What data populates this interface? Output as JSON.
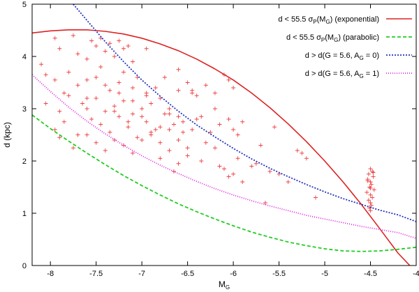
{
  "chart_data": {
    "type": "scatter",
    "xlabel": "M",
    "xlabel_sub": "G",
    "ylabel": "d (kpc)",
    "xlim": [
      -8.2,
      -4.0
    ],
    "ylim": [
      0,
      5
    ],
    "xticks": [
      -8,
      -7.5,
      -7,
      -6.5,
      -6,
      -5.5,
      -5,
      -4.5,
      -4
    ],
    "xtick_labels": [
      "-8",
      "-7.5",
      "-7",
      "-6.5",
      "-6",
      "-5.5",
      "-5",
      "-4.5",
      "-4"
    ],
    "yticks": [
      0,
      1,
      2,
      3,
      4,
      5
    ],
    "ytick_labels": [
      "0",
      "1",
      "2",
      "3",
      "4",
      "5"
    ],
    "grid": false,
    "legend_position": "top-right",
    "series": [
      {
        "name": "exponential",
        "label_pre": "d < 55.5 σ",
        "label_sub1": "P",
        "label_mid": "(M",
        "label_sub2": "G",
        "label_post": ") (exponential)",
        "kind": "line",
        "color": "#dd2222",
        "dash": "solid",
        "x": [
          -8.2,
          -8.0,
          -7.8,
          -7.6,
          -7.4,
          -7.2,
          -7.0,
          -6.8,
          -6.6,
          -6.4,
          -6.2,
          -6.0,
          -5.8,
          -5.6,
          -5.4,
          -5.2,
          -5.0,
          -4.8,
          -4.6,
          -4.4,
          -4.2,
          -4.07
        ],
        "y": [
          4.45,
          4.49,
          4.51,
          4.51,
          4.48,
          4.43,
          4.35,
          4.24,
          4.11,
          3.95,
          3.76,
          3.55,
          3.3,
          3.02,
          2.71,
          2.37,
          2.0,
          1.6,
          1.17,
          0.71,
          0.24,
          0.0
        ]
      },
      {
        "name": "parabolic",
        "label_pre": "d < 55.5 σ",
        "label_sub1": "P",
        "label_mid": "(M",
        "label_sub2": "G",
        "label_post": ") (parabolic)",
        "kind": "line",
        "color": "#22cc22",
        "dash": "5,3",
        "x": [
          -8.2,
          -8.0,
          -7.8,
          -7.6,
          -7.4,
          -7.2,
          -7.0,
          -6.8,
          -6.6,
          -6.4,
          -6.2,
          -6.0,
          -5.8,
          -5.6,
          -5.4,
          -5.2,
          -5.0,
          -4.8,
          -4.6,
          -4.4,
          -4.2,
          -4.0
        ],
        "y": [
          2.88,
          2.62,
          2.38,
          2.15,
          1.93,
          1.72,
          1.53,
          1.35,
          1.18,
          1.03,
          0.89,
          0.76,
          0.64,
          0.54,
          0.45,
          0.38,
          0.32,
          0.28,
          0.27,
          0.28,
          0.31,
          0.35
        ]
      },
      {
        "name": "AG0",
        "label_pre": "d > d(G = 5.6, A",
        "label_sub1": "G",
        "label_mid": " = 0)",
        "label_sub2": "",
        "label_post": "",
        "kind": "line",
        "color": "#2233bb",
        "dash": "2,2",
        "x": [
          -7.75,
          -7.6,
          -7.4,
          -7.2,
          -7.0,
          -6.8,
          -6.6,
          -6.4,
          -6.2,
          -6.0,
          -5.8,
          -5.6,
          -5.4,
          -5.2,
          -5.0,
          -4.8,
          -4.6,
          -4.4,
          -4.2,
          -4.0
        ],
        "y": [
          5.0,
          4.69,
          4.28,
          3.9,
          3.55,
          3.24,
          2.95,
          2.69,
          2.46,
          2.24,
          2.04,
          1.86,
          1.7,
          1.55,
          1.41,
          1.28,
          1.17,
          1.06,
          0.97,
          0.84
        ]
      },
      {
        "name": "AG1",
        "label_pre": "d > d(G = 5.6, A",
        "label_sub1": "G",
        "label_mid": " = 1)",
        "label_sub2": "",
        "label_post": "",
        "kind": "line",
        "color": "#dd22dd",
        "dash": "1,2",
        "x": [
          -8.2,
          -8.0,
          -7.8,
          -7.6,
          -7.4,
          -7.2,
          -7.0,
          -6.8,
          -6.6,
          -6.4,
          -6.2,
          -6.0,
          -5.8,
          -5.6,
          -5.4,
          -5.2,
          -5.0,
          -4.8,
          -4.6,
          -4.4,
          -4.2,
          -4.0
        ],
        "y": [
          3.65,
          3.33,
          3.03,
          2.76,
          2.52,
          2.3,
          2.1,
          1.92,
          1.76,
          1.61,
          1.47,
          1.35,
          1.24,
          1.14,
          1.05,
          0.96,
          0.89,
          0.82,
          0.75,
          0.69,
          0.63,
          0.52
        ]
      }
    ],
    "points": {
      "name": "stars",
      "marker": "+",
      "color": "#ee4444",
      "x": [
        -7.95,
        -7.9,
        -7.75,
        -7.7,
        -7.6,
        -7.55,
        -7.5,
        -7.45,
        -7.4,
        -7.35,
        -7.3,
        -7.25,
        -7.2,
        -7.15,
        -7.1,
        -8.1,
        -8.05,
        -7.95,
        -7.85,
        -7.8,
        -7.7,
        -7.6,
        -7.5,
        -7.45,
        -7.35,
        -7.25,
        -7.2,
        -7.1,
        -7.05,
        -6.95,
        -8.05,
        -7.9,
        -7.8,
        -7.65,
        -7.6,
        -7.5,
        -7.4,
        -7.3,
        -7.2,
        -7.1,
        -7.0,
        -6.9,
        -6.8,
        -6.7,
        -6.6,
        -7.95,
        -7.85,
        -7.7,
        -7.55,
        -7.45,
        -7.35,
        -7.25,
        -7.15,
        -7.05,
        -6.95,
        -6.85,
        -6.75,
        -6.65,
        -6.55,
        -6.45,
        -7.9,
        -7.75,
        -7.6,
        -7.5,
        -7.4,
        -7.3,
        -7.2,
        -7.1,
        -7.0,
        -6.9,
        -6.8,
        -6.7,
        -6.6,
        -6.5,
        -6.4,
        -7.6,
        -7.4,
        -7.25,
        -7.1,
        -6.95,
        -6.85,
        -6.75,
        -6.6,
        -6.5,
        -6.4,
        -6.3,
        -6.2,
        -6.1,
        -6.05,
        -6.0,
        -7.3,
        -7.15,
        -7.0,
        -6.9,
        -6.8,
        -6.7,
        -6.55,
        -6.45,
        -6.35,
        -6.25,
        -6.15,
        -6.05,
        -6.0,
        -5.95,
        -5.9,
        -6.8,
        -6.7,
        -6.6,
        -6.5,
        -6.35,
        -6.2,
        -6.1,
        -6.05,
        -5.95,
        -5.8,
        -5.7,
        -5.6,
        -5.5,
        -5.4,
        -5.3,
        -6.95,
        -6.6,
        -6.45,
        -6.2,
        -6.0,
        -5.75,
        -5.55,
        -5.25,
        -5.2,
        -6.3,
        -6.15,
        -5.9,
        -5.65,
        -5.1,
        -6.65,
        -4.5,
        -4.48,
        -4.52,
        -4.47,
        -4.53,
        -4.5,
        -4.49,
        -4.51,
        -4.46,
        -4.54,
        -4.5,
        -4.48,
        -4.52,
        -4.5,
        -4.49,
        -4.51,
        -4.5,
        -4.47,
        -4.53,
        -4.5
      ],
      "y": [
        4.35,
        4.15,
        4.4,
        4.05,
        3.95,
        4.3,
        4.2,
        4.35,
        4.1,
        4.25,
        4.0,
        4.3,
        4.15,
        4.2,
        3.9,
        3.85,
        3.65,
        3.55,
        3.3,
        3.7,
        3.45,
        3.2,
        3.6,
        3.8,
        3.35,
        3.5,
        3.7,
        3.4,
        3.6,
        3.3,
        3.1,
        2.95,
        3.25,
        3.1,
        3.0,
        3.2,
        2.95,
        3.05,
        3.15,
        2.9,
        3.0,
        3.1,
        3.2,
        3.0,
        2.85,
        2.6,
        2.75,
        2.5,
        2.8,
        2.7,
        2.55,
        2.85,
        2.65,
        2.45,
        2.75,
        2.6,
        2.9,
        2.7,
        2.55,
        3.35,
        2.45,
        2.25,
        2.5,
        2.35,
        2.2,
        2.4,
        2.3,
        2.15,
        2.4,
        2.5,
        2.35,
        2.6,
        2.4,
        2.25,
        2.8,
        3.55,
        3.45,
        3.3,
        3.15,
        3.25,
        3.4,
        3.6,
        3.35,
        3.5,
        3.25,
        3.45,
        3.3,
        3.65,
        3.55,
        3.4,
        2.95,
        2.75,
        2.85,
        2.55,
        2.65,
        2.9,
        2.75,
        2.6,
        2.85,
        2.55,
        2.7,
        2.8,
        2.6,
        2.5,
        2.75,
        2.05,
        2.2,
        1.95,
        2.1,
        2.0,
        2.25,
        1.85,
        1.7,
        2.05,
        1.9,
        2.3,
        1.8,
        1.75,
        1.6,
        2.2,
        4.15,
        3.75,
        3.3,
        3.0,
        1.75,
        1.95,
        2.65,
        2.15,
        2.05,
        2.35,
        1.9,
        1.6,
        1.2,
        1.3,
        1.8,
        1.85,
        1.8,
        1.75,
        1.7,
        1.65,
        1.6,
        1.55,
        1.5,
        1.45,
        1.4,
        1.35,
        1.3,
        1.25,
        1.2,
        1.15,
        1.1,
        1.05,
        1.78,
        1.62,
        1.48
      ]
    }
  }
}
